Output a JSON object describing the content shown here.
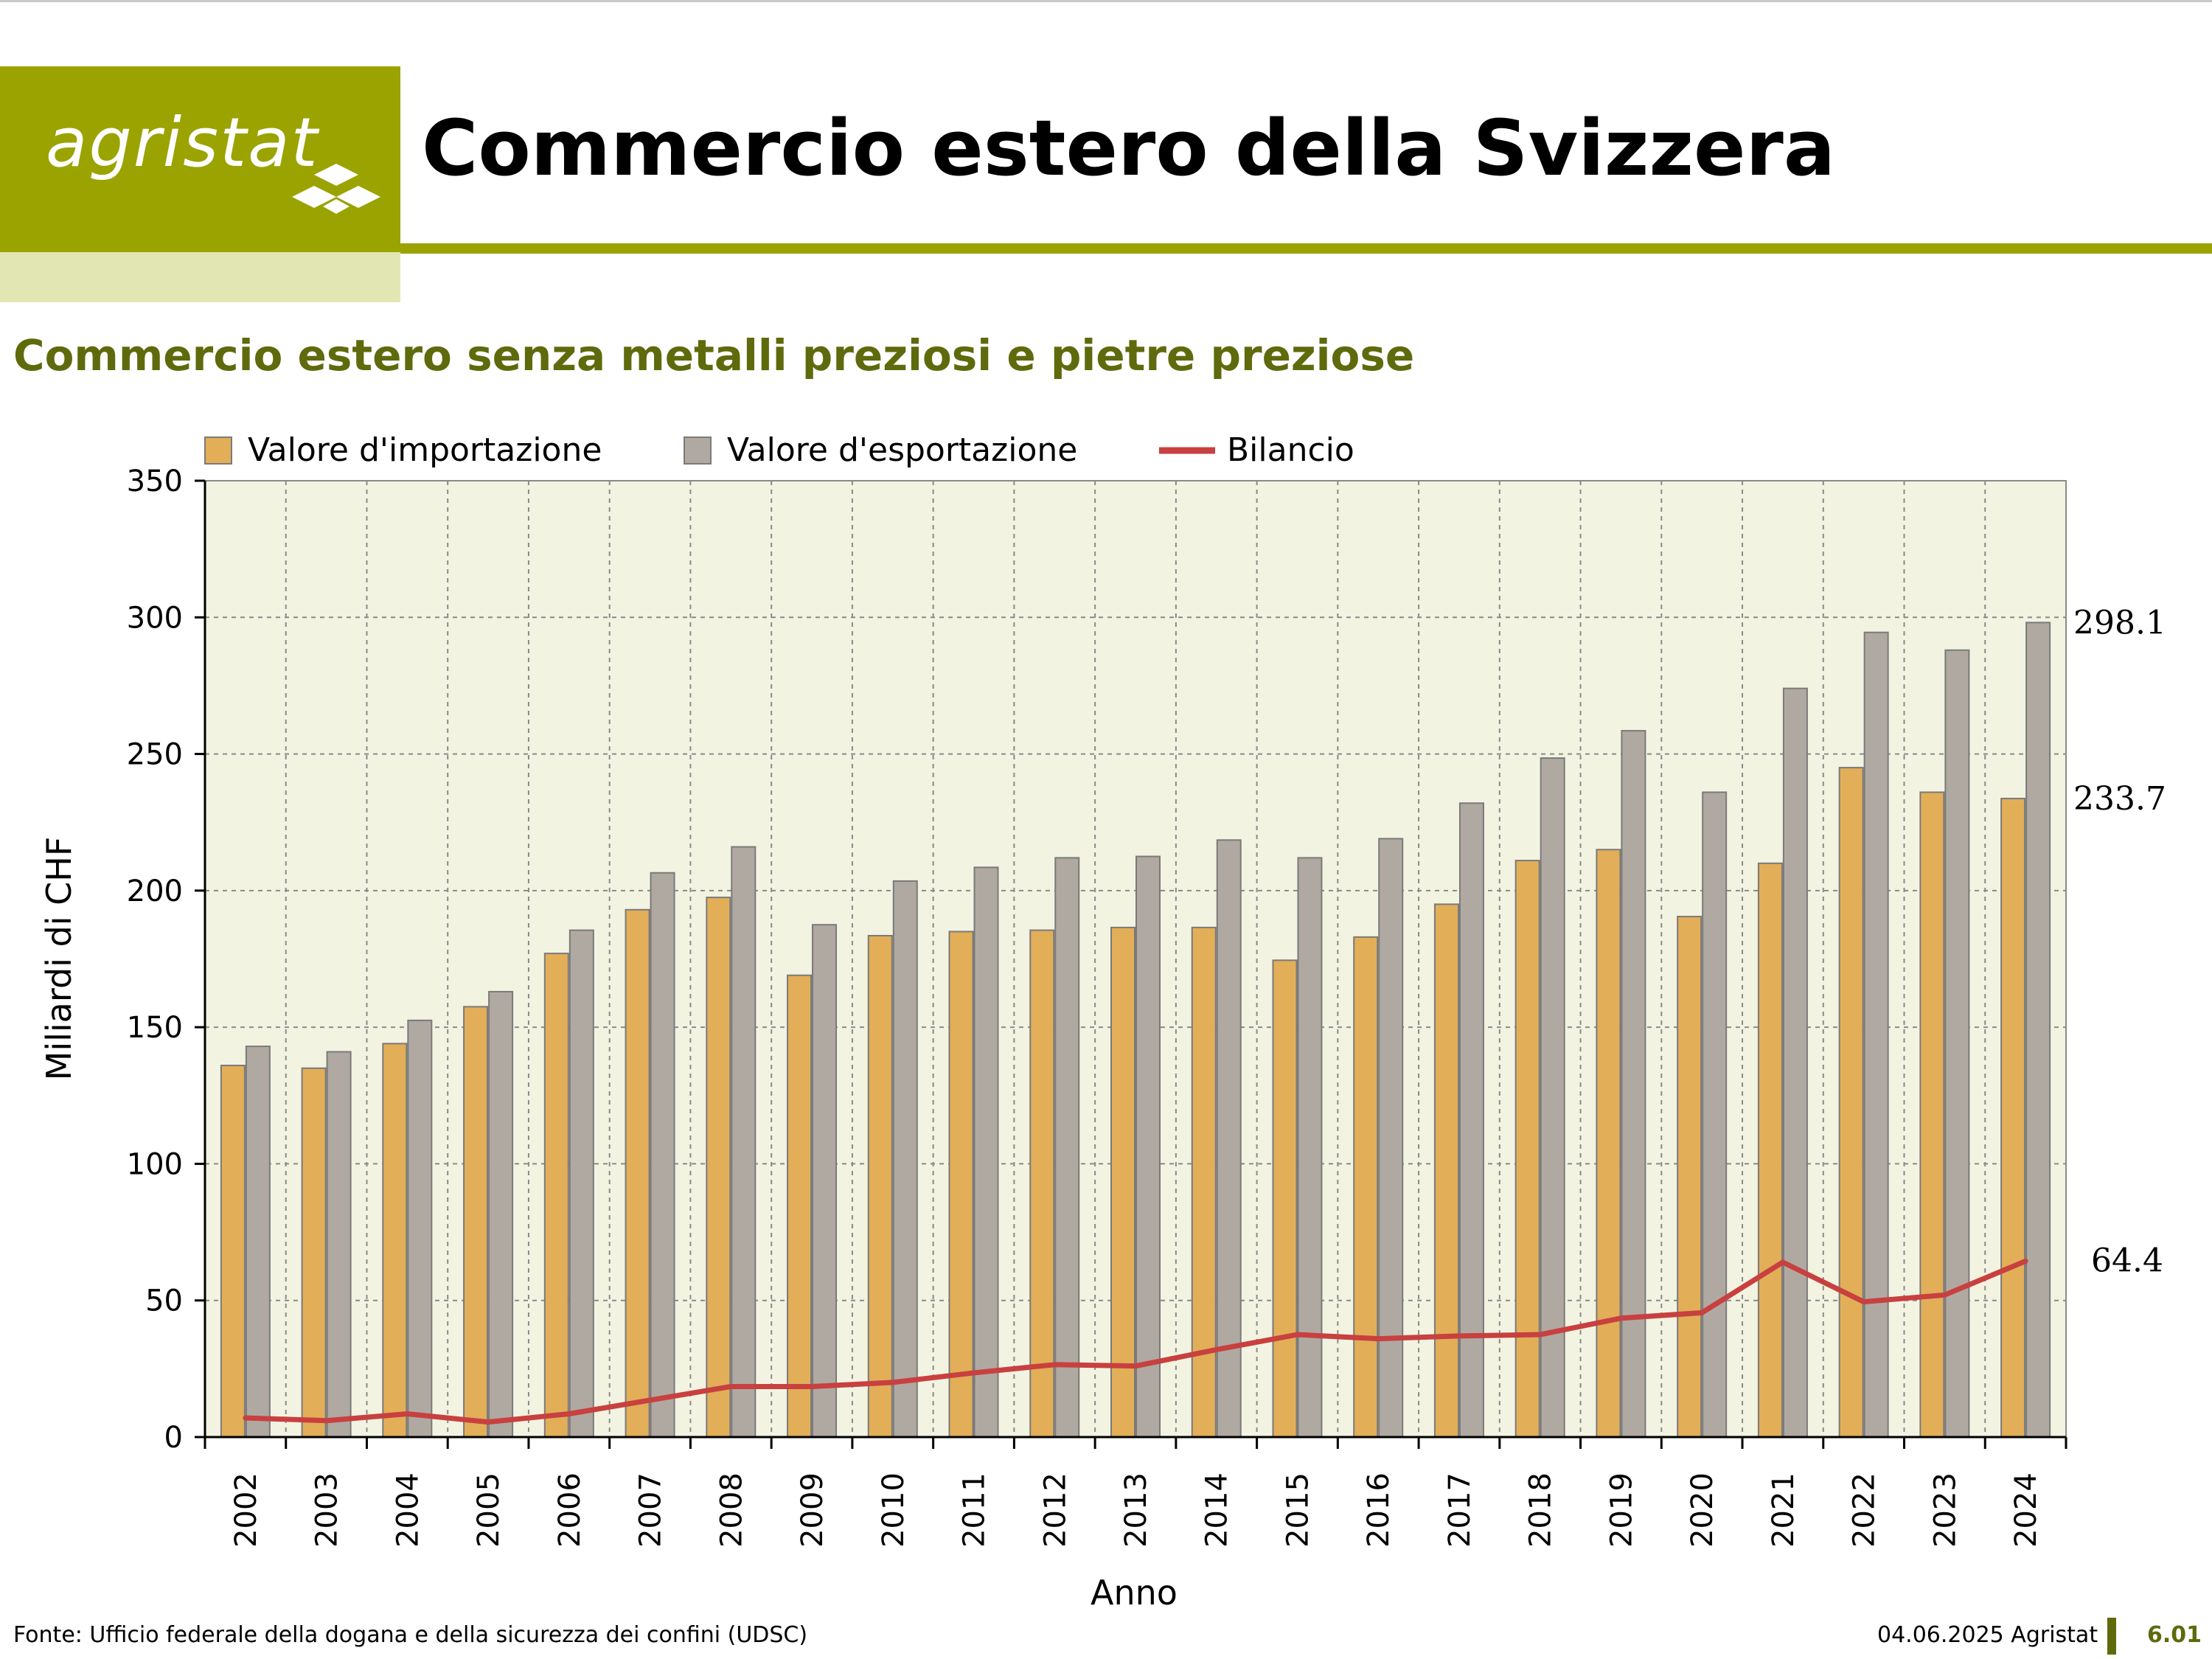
{
  "header": {
    "logo_text": "agristat",
    "title": "Commercio estero della Svizzera",
    "subtitle": "Commercio estero senza metalli preziosi e pietre preziose"
  },
  "footer": {
    "source": "Fonte: Ufficio federale della dogana e della sicurezza dei confini (UDSC)",
    "date": "04.06.2025 Agristat",
    "page": "6.01"
  },
  "colors": {
    "brand": "#9aa300",
    "brand_dark": "#5f6a0c",
    "plot_bg": "#f3f3e2",
    "import": "#e2ae58",
    "export": "#b0a9a2",
    "balance": "#c8403f"
  },
  "chart_data": {
    "type": "bar",
    "xlabel": "Anno",
    "ylabel": "Miliardi di CHF",
    "ylim": [
      0,
      350
    ],
    "yticks": [
      0,
      50,
      100,
      150,
      200,
      250,
      300,
      350
    ],
    "grid": true,
    "legend_position": "top",
    "categories": [
      "2002",
      "2003",
      "2004",
      "2005",
      "2006",
      "2007",
      "2008",
      "2009",
      "2010",
      "2011",
      "2012",
      "2013",
      "2014",
      "2015",
      "2016",
      "2017",
      "2018",
      "2019",
      "2020",
      "2021",
      "2022",
      "2023",
      "2024"
    ],
    "series": [
      {
        "name": "Valore d'importazione",
        "kind": "bar",
        "values": [
          136,
          135,
          144,
          157.5,
          177,
          193,
          197.5,
          169,
          183.5,
          185,
          185.5,
          186.5,
          186.5,
          174.5,
          183,
          195,
          211,
          215,
          190.5,
          210,
          245,
          236,
          233.7
        ]
      },
      {
        "name": "Valore d'esportazione",
        "kind": "bar",
        "values": [
          143,
          141,
          152.5,
          163,
          185.5,
          206.5,
          216,
          187.5,
          203.5,
          208.5,
          212,
          212.5,
          218.5,
          212,
          219,
          232,
          248.5,
          258.5,
          236,
          274,
          294.5,
          288,
          298.1
        ]
      },
      {
        "name": "Bilancio",
        "kind": "line",
        "values": [
          7,
          6,
          8.5,
          5.5,
          8.5,
          13.5,
          18.5,
          18.5,
          20,
          23.5,
          26.5,
          26,
          32,
          37.5,
          36,
          37,
          37.5,
          43.5,
          45.5,
          64,
          49.5,
          52,
          64.4
        ]
      }
    ],
    "annotations": [
      {
        "text": "298.1",
        "series": "Valore d'esportazione",
        "category": "2024"
      },
      {
        "text": "233.7",
        "series": "Valore d'importazione",
        "category": "2024"
      },
      {
        "text": "64.4",
        "series": "Bilancio",
        "category": "2024"
      }
    ]
  }
}
